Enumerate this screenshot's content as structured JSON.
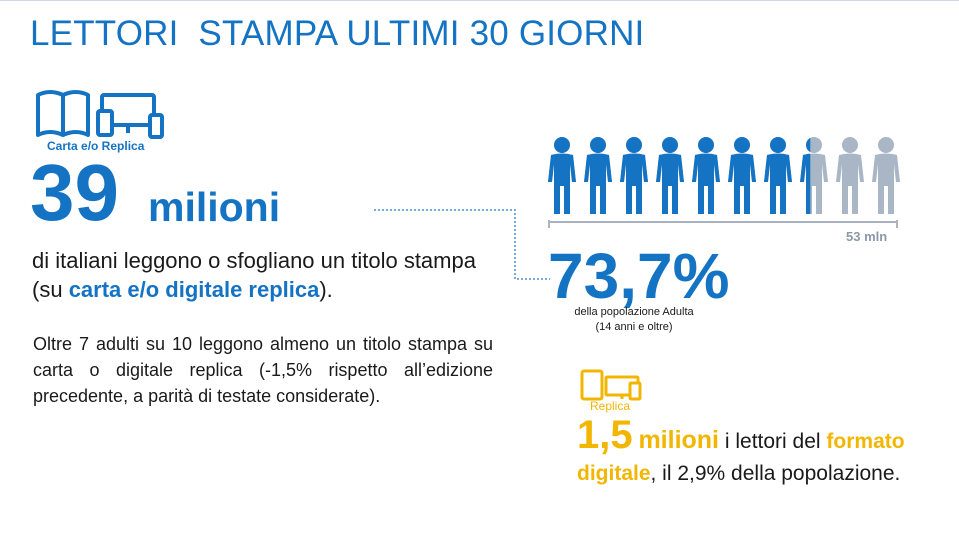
{
  "title": "LETTORI  STAMPA ULTIMI 30 GIORNI",
  "icons": {
    "print": "open-book-icon",
    "devices": "monitor-tablet-phone-icon",
    "people": "people-icon",
    "replica_devices": "tablet-monitor-icon"
  },
  "colors": {
    "accent_blue": "#1573c4",
    "accent_yellow": "#f2b600",
    "grey": "#8a98a8"
  },
  "carta": {
    "label": "Carta e/o Replica",
    "number": "39",
    "unit": "milioni",
    "desc_prefix": "di italiani leggono o sfogliano un titolo stampa (su ",
    "desc_highlight": "carta e/o digitale replica",
    "desc_suffix": ")."
  },
  "paragraph": "Oltre 7 adulti su 10 leggono almeno un titolo stampa su carta o digitale replica (-1,5% rispetto all’edizione precedente, a parità di testate considerate).",
  "population": {
    "share_filled": 0.737,
    "scale_label": "53 mln",
    "percent": "73,7%",
    "desc_line1": "della popolazione Adulta",
    "desc_line2": "(14 anni e oltre)"
  },
  "replica": {
    "label": "Replica",
    "number": "1,5",
    "unit": "milioni",
    "text1": " i lettori del ",
    "highlight": "formato digitale",
    "text2": ", il 2,9% della popolazione."
  }
}
